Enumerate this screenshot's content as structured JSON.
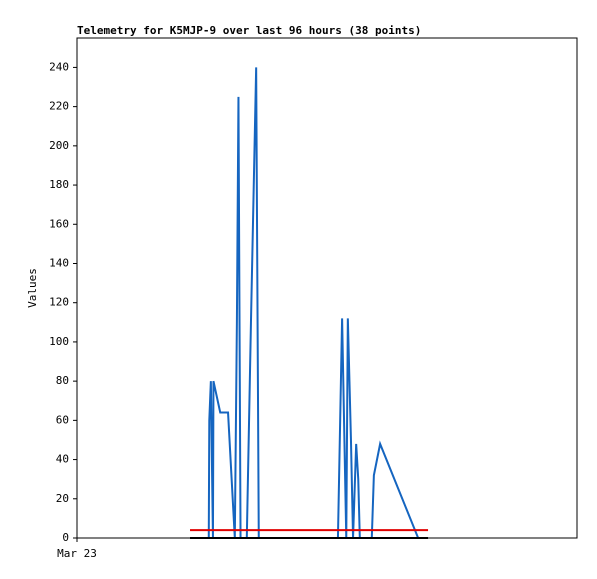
{
  "chart_data": {
    "type": "line",
    "title": "Telemetry for K5MJP-9 over last 96 hours (38 points)",
    "y_label": "Values",
    "xlim": [
      0,
      96
    ],
    "xticks": [
      {
        "value": 0,
        "label": "Mar 23"
      }
    ],
    "ylim": [
      0,
      255
    ],
    "yticks": [
      0,
      20,
      40,
      60,
      80,
      100,
      120,
      140,
      160,
      180,
      200,
      220,
      240
    ],
    "series": [
      {
        "color": "#1565c0",
        "x": [
          25.3,
          25.4,
          25.7,
          26.1,
          26.2,
          27.5,
          29.0,
          30.3,
          30.7,
          31.0,
          31.4,
          32.6,
          33.4,
          34.4,
          34.9,
          50.1,
          50.9,
          51.7,
          52.0,
          52.6,
          53.0,
          53.6,
          54.0,
          54.3,
          56.6,
          57.0,
          58.2,
          65.5,
          67.4
        ],
        "values": [
          0,
          60,
          80,
          0,
          80,
          64,
          64,
          0,
          110,
          225,
          0,
          0,
          110,
          240,
          0,
          0,
          112,
          0,
          112,
          50,
          0,
          48,
          30,
          0,
          0,
          32,
          48,
          0,
          0
        ]
      },
      {
        "color": "#e00000",
        "x": [
          21.7,
          67.4
        ],
        "values": [
          4,
          4
        ]
      },
      {
        "color": "#000000",
        "x": [
          21.7,
          67.4
        ],
        "values": [
          0,
          0
        ]
      }
    ]
  }
}
